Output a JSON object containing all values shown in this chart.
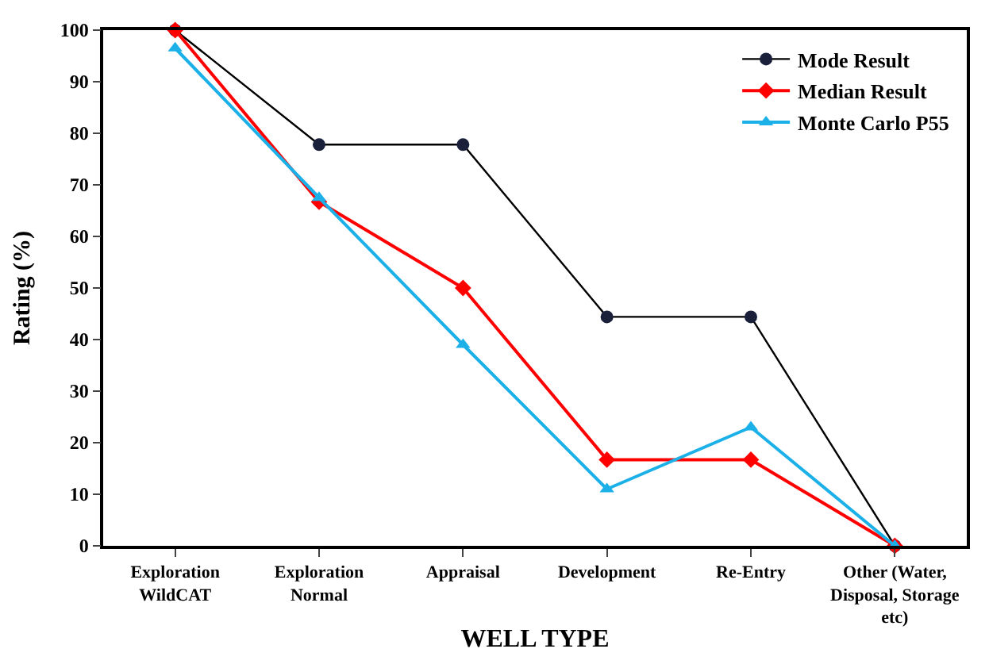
{
  "chart_data": {
    "type": "line",
    "xlabel": "WELL TYPE",
    "ylabel": "Rating (%)",
    "categories": [
      "Exploration\nWildCAT",
      "Exploration\nNormal",
      "Appraisal",
      "Development",
      "Re-Entry",
      "Other (Water,\nDisposal, Storage\netc)"
    ],
    "series": [
      {
        "name": "Mode Result",
        "color": "#000000",
        "marker": "circle",
        "values": [
          100,
          77.8,
          77.8,
          44.4,
          44.4,
          0
        ]
      },
      {
        "name": "Median Result",
        "color": "#ff0000",
        "marker": "diamond",
        "values": [
          100,
          66.7,
          50,
          16.7,
          16.7,
          0
        ]
      },
      {
        "name": "Monte Carlo P55",
        "color": "#1cb0e8",
        "marker": "triangle",
        "values": [
          96.5,
          67.5,
          39,
          11,
          23,
          0
        ]
      }
    ],
    "ylim": [
      0,
      100
    ],
    "yticks": [
      0,
      10,
      20,
      30,
      40,
      50,
      60,
      70,
      80,
      90,
      100
    ],
    "legend": "top right",
    "line_style": "solid"
  }
}
